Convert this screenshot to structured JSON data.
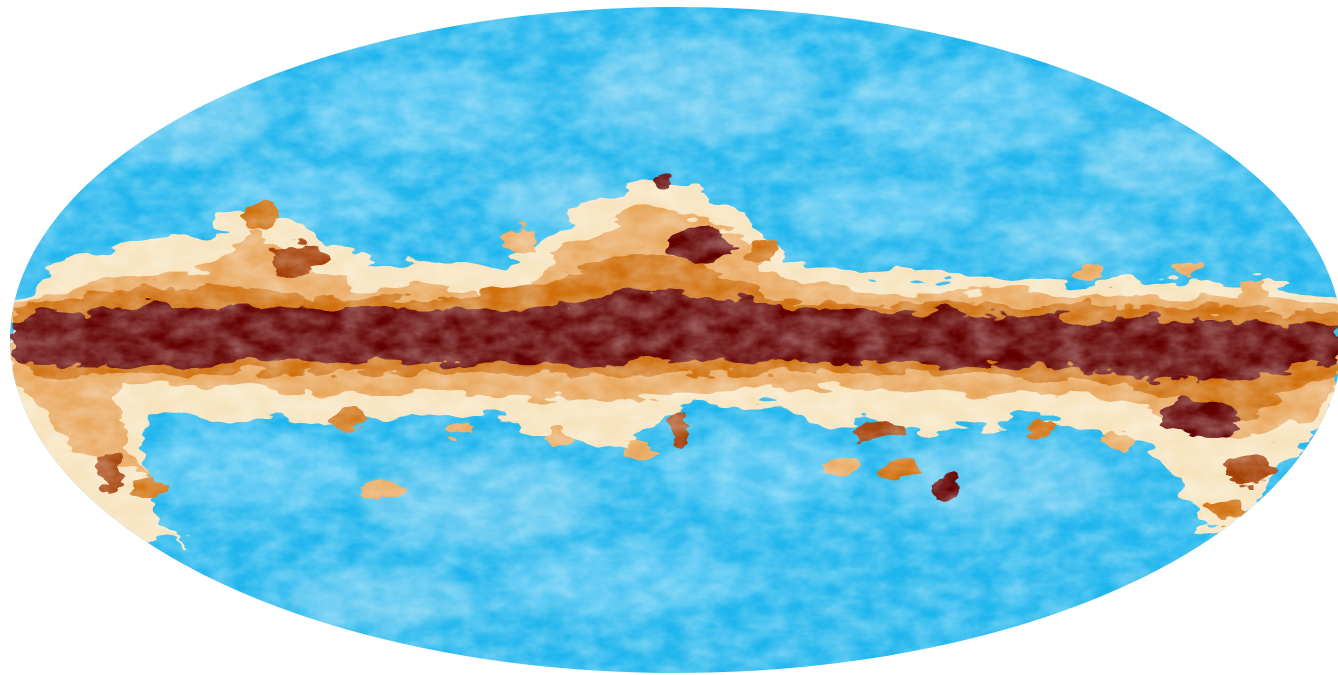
{
  "map": {
    "projection": "mollweide",
    "colors": {
      "background": "#ffffff",
      "sky": "#1fb6ee",
      "sky_light": "#6fd0f5",
      "sky_pale": "#bfe6f6",
      "cream": "#f7e3bc",
      "tan": "#e9a75b",
      "orange": "#d0700f",
      "rust": "#a33a05",
      "maroon": "#640000"
    }
  }
}
